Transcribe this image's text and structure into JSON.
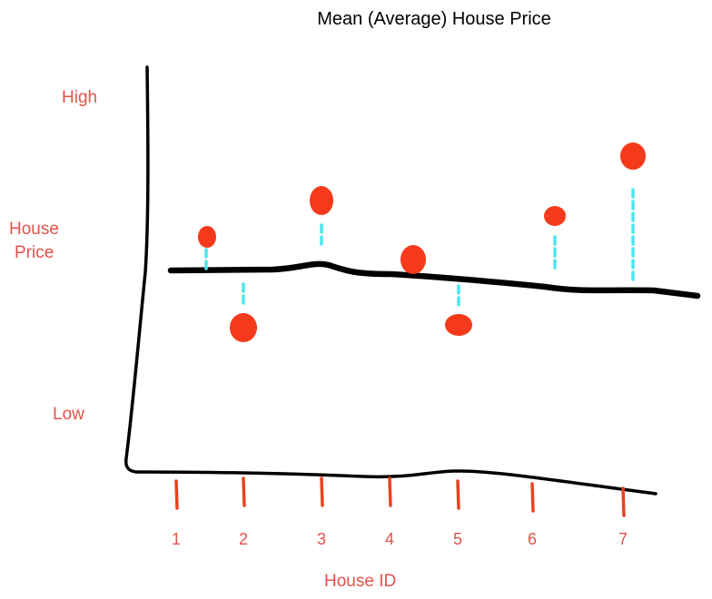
{
  "chart_data": {
    "type": "scatter",
    "title": "Mean (Average) House Price",
    "xlabel": "House ID",
    "ylabel": "House Price",
    "y_high_label": "High",
    "y_low_label": "Low",
    "categories": [
      "1",
      "2",
      "3",
      "4",
      "5",
      "6",
      "7"
    ],
    "mean_line": true,
    "residual_lines": true,
    "colors": {
      "points": "#f53a1b",
      "mean_line": "#000000",
      "residuals": "#4de6ec",
      "labels": "#e0534a"
    }
  }
}
